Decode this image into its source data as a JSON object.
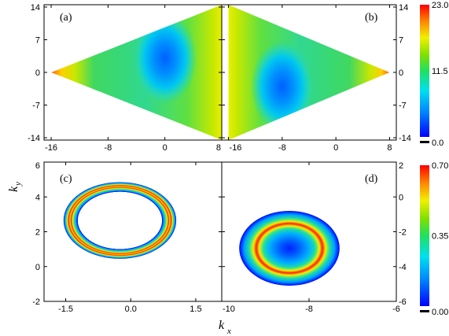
{
  "colors": {
    "axis": "#000000"
  },
  "chart_data": [
    {
      "type": "heatmap",
      "panel_label": "(a)",
      "shape": "rhombus",
      "xlim": [
        -17,
        8
      ],
      "ylim": [
        -14.5,
        14.5
      ],
      "xticks": [
        -16,
        -8,
        0,
        8
      ],
      "yticks": [
        -14,
        -7,
        0,
        7,
        14
      ],
      "tick_labels_x": [
        "-16",
        "-8",
        "0",
        "8"
      ],
      "tick_labels_y": [
        "-14",
        "-7",
        "0",
        "7",
        "14"
      ],
      "vertices": [
        [
          -16,
          0
        ],
        [
          8,
          14.5
        ],
        [
          8,
          -14.5
        ]
      ],
      "minimum_center": [
        0,
        3
      ]
    },
    {
      "type": "heatmap",
      "panel_label": "(b)",
      "shape": "rhombus",
      "xlim": [
        -17,
        9
      ],
      "ylim": [
        -14.5,
        14.5
      ],
      "xticks": [
        -16,
        -8,
        0,
        8
      ],
      "yticks": [
        -14,
        -7,
        0,
        7,
        14
      ],
      "tick_labels_x": [
        "-16",
        "-8",
        "0",
        "8"
      ],
      "tick_labels_y": [
        "-14",
        "-7",
        "0",
        "7",
        "14"
      ],
      "vertices": [
        [
          -16,
          14.5
        ],
        [
          8,
          0
        ],
        [
          -16,
          -14.5
        ]
      ],
      "minimum_center": [
        -8,
        -3
      ],
      "colorbar": {
        "min": 0.0,
        "mid": 11.5,
        "max": 23.0,
        "labels": [
          "23.0",
          "11.5",
          "0.0"
        ]
      }
    },
    {
      "type": "heatmap",
      "panel_label": "(c)",
      "xlim": [
        -2.0,
        2.1
      ],
      "ylim": [
        -2,
        6
      ],
      "xticks": [
        -1.5,
        0.0,
        1.5
      ],
      "yticks": [
        -2,
        0,
        2,
        4,
        6
      ],
      "tick_labels_x": [
        "-1.5",
        "0.0",
        "1.5"
      ],
      "tick_labels_y": [
        "-2",
        "0",
        "2",
        "4",
        "6"
      ],
      "ylabel": "k",
      "ylabel_sub": "y",
      "ring": {
        "center": [
          -0.25,
          2.65
        ],
        "outer_radius": [
          1.3,
          2.2
        ],
        "inner_radius": [
          0.85,
          1.65
        ]
      }
    },
    {
      "type": "heatmap",
      "panel_label": "(d)",
      "xlim": [
        -10,
        -6
      ],
      "ylim": [
        -6,
        2
      ],
      "xticks": [
        -10,
        -8,
        -6
      ],
      "yticks": [
        -6,
        -4,
        -2,
        0,
        2
      ],
      "tick_labels_x": [
        "-10",
        "-8",
        "-6"
      ],
      "tick_labels_y": [
        "-6",
        "-4",
        "-2",
        "0",
        "2"
      ],
      "xlabel": "k",
      "xlabel_sub": "x",
      "disk": {
        "center": [
          -8.45,
          -2.95
        ],
        "radius": [
          1.15,
          2.15
        ]
      },
      "colorbar": {
        "min": 0.0,
        "mid": 0.35,
        "max": 0.7,
        "labels": [
          "0.70",
          "0.35",
          "0.00"
        ]
      }
    }
  ]
}
